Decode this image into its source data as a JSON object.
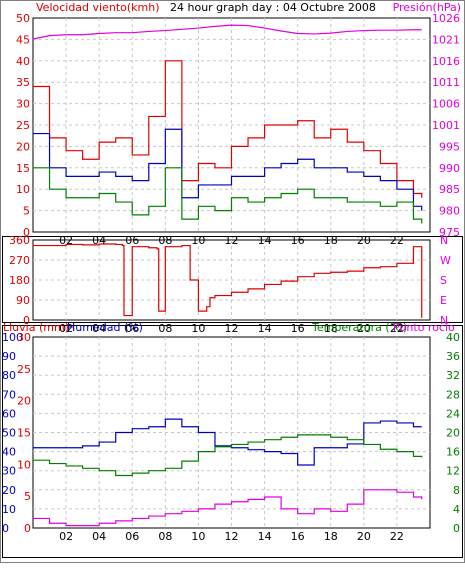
{
  "title": "24 hour graph day : 04 Octubre 2008",
  "colors": {
    "red": "#e00000",
    "blue": "#0000c0",
    "green": "#008000",
    "magenta": "#e000e0",
    "grid": "#c8c8c8",
    "frame": "#000000"
  },
  "x_ticks": [
    "02",
    "04",
    "06",
    "08",
    "10",
    "12",
    "14",
    "16",
    "18",
    "20",
    "22"
  ],
  "panel1": {
    "label_left": "Velocidad viento(kmh)",
    "label_right": "Presión(hPa)",
    "left_ticks": [
      "0",
      "5",
      "10",
      "15",
      "20",
      "25",
      "30",
      "35",
      "40",
      "45",
      "50"
    ],
    "right_ticks": [
      "975",
      "980",
      "985",
      "990",
      "995",
      "1001",
      "1006",
      "1011",
      "1016",
      "1021",
      "1026"
    ]
  },
  "panel2": {
    "left_ticks": [
      "0",
      "90",
      "180",
      "270",
      "360"
    ],
    "right_ticks": [
      "N",
      "E",
      "S",
      "W",
      "N"
    ]
  },
  "panel3": {
    "label_rain": "Lluvia (mm)",
    "label_hum": "Humedad (%)",
    "label_temp": "Temperatura (°C)",
    "label_dew": "Punto rocío",
    "rain_ticks": [
      "0",
      "5",
      "10",
      "15",
      "20",
      "25",
      "30"
    ],
    "hum_ticks": [
      "0",
      "10",
      "20",
      "30",
      "40",
      "50",
      "60",
      "70",
      "80",
      "90",
      "100"
    ],
    "temp_ticks": [
      "0",
      "4",
      "8",
      "12",
      "16",
      "20",
      "24",
      "28",
      "32",
      "36",
      "40"
    ]
  },
  "chart_data": [
    {
      "type": "line",
      "title": "24 hour graph day : 04 Octubre 2008",
      "xlabel": "",
      "ylabel": "Velocidad viento(kmh)",
      "ylim": [
        0,
        50
      ],
      "y2label": "Presión(hPa)",
      "y2lim": [
        975,
        1026
      ],
      "x": [
        0,
        1,
        2,
        3,
        4,
        5,
        6,
        7,
        8,
        9,
        10,
        11,
        12,
        13,
        14,
        15,
        16,
        17,
        18,
        19,
        20,
        21,
        22,
        23,
        23.5
      ],
      "series": [
        {
          "name": "max",
          "axis": "left",
          "color": "red",
          "values": [
            34,
            22,
            19,
            17,
            21,
            22,
            18,
            27,
            40,
            12,
            16,
            15,
            20,
            22,
            25,
            25,
            26,
            22,
            24,
            21,
            19,
            16,
            12,
            9,
            8
          ]
        },
        {
          "name": "avg",
          "axis": "left",
          "color": "blue",
          "values": [
            23,
            15,
            13,
            13,
            14,
            13,
            12,
            16,
            24,
            8,
            11,
            11,
            13,
            13,
            15,
            16,
            17,
            15,
            15,
            14,
            13,
            12,
            10,
            6,
            5
          ]
        },
        {
          "name": "min",
          "axis": "left",
          "color": "green",
          "values": [
            15,
            10,
            8,
            8,
            9,
            7,
            4,
            6,
            15,
            3,
            6,
            5,
            8,
            7,
            8,
            9,
            10,
            8,
            8,
            7,
            7,
            6,
            7,
            3,
            2
          ]
        },
        {
          "name": "Presión(hPa)",
          "axis": "right",
          "color": "magenta",
          "values": [
            1021,
            1021.8,
            1022,
            1022,
            1022.3,
            1022.5,
            1022.5,
            1022.8,
            1023,
            1023.3,
            1023.6,
            1024,
            1024.3,
            1024.2,
            1023.6,
            1022.9,
            1022.3,
            1022.2,
            1022.4,
            1022.8,
            1023,
            1023.1,
            1023.1,
            1023.2,
            1023.2
          ]
        }
      ]
    },
    {
      "type": "line",
      "xlabel": "",
      "ylabel": "",
      "ylim": [
        0,
        360
      ],
      "x": [
        0,
        1,
        2,
        3,
        4,
        5,
        5.4,
        5.5,
        6,
        7,
        7.5,
        7.6,
        8,
        9,
        9.5,
        10,
        10.5,
        10.7,
        11,
        12,
        13,
        14,
        15,
        16,
        17,
        18,
        19,
        20,
        21,
        22,
        23,
        23.5
      ],
      "series": [
        {
          "name": "direction",
          "color": "red",
          "values": [
            335,
            335,
            340,
            338,
            342,
            340,
            335,
            20,
            330,
            325,
            320,
            40,
            330,
            335,
            180,
            40,
            60,
            100,
            110,
            125,
            140,
            160,
            175,
            195,
            210,
            215,
            220,
            235,
            240,
            255,
            330,
            10
          ]
        }
      ]
    },
    {
      "type": "line",
      "xlabel": "",
      "ylabel": "Lluvia (mm)",
      "ylim": [
        0,
        30
      ],
      "y2label": "Temperatura (°C)",
      "y2lim": [
        0,
        40
      ],
      "x": [
        0,
        1,
        2,
        3,
        4,
        5,
        6,
        7,
        8,
        9,
        10,
        11,
        12,
        13,
        14,
        15,
        16,
        17,
        18,
        19,
        20,
        21,
        22,
        23,
        23.5
      ],
      "series": [
        {
          "name": "Humedad (%)",
          "axis": "hum",
          "color": "blue",
          "values": [
            42,
            42,
            42,
            43,
            45,
            50,
            52,
            53,
            57,
            53,
            50,
            43,
            42,
            41,
            40,
            39,
            33,
            42,
            42,
            44,
            55,
            56,
            55,
            53,
            53
          ]
        },
        {
          "name": "Temperatura (°C)",
          "axis": "right",
          "color": "green",
          "values": [
            14.2,
            13.5,
            13,
            12.5,
            12,
            11,
            11.5,
            12,
            12.5,
            14,
            16,
            17,
            17.5,
            18,
            18.5,
            19,
            19.5,
            19.5,
            19,
            18.5,
            17.5,
            16.5,
            16,
            15,
            14.8
          ]
        },
        {
          "name": "Punto rocío",
          "axis": "right",
          "color": "magenta",
          "values": [
            2,
            1,
            0.5,
            0.5,
            1,
            1.5,
            2,
            2.5,
            3,
            3.5,
            4,
            5,
            5.5,
            6,
            6.5,
            4,
            3,
            4,
            3.5,
            5,
            8,
            8,
            7.5,
            6.5,
            6
          ]
        }
      ]
    }
  ]
}
